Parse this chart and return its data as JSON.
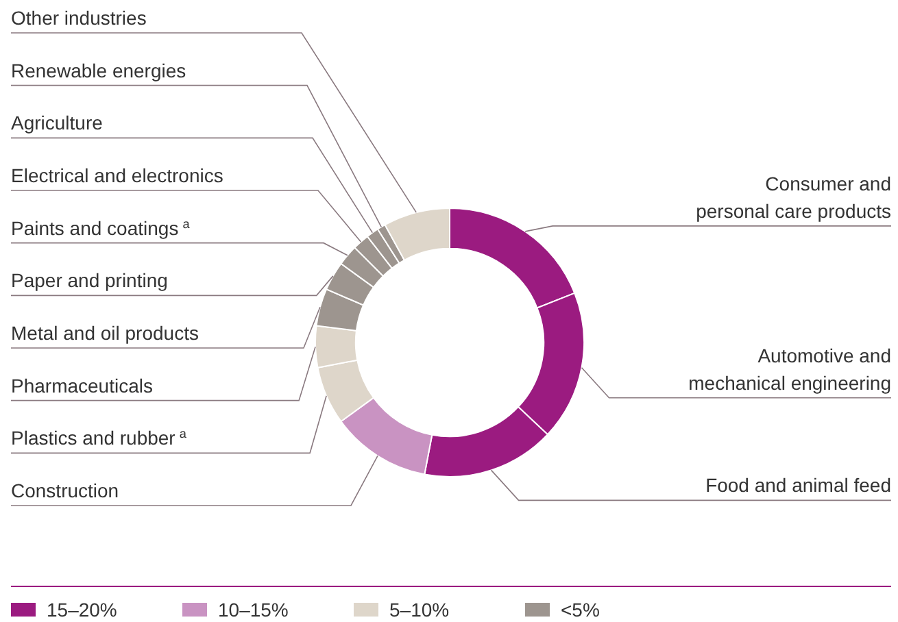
{
  "chart_data": {
    "type": "donut",
    "categories": [
      "Consumer and personal care products",
      "Automotive and mechanical engineering",
      "Food and animal feed",
      "Construction",
      "Plastics and rubber$^{a}$",
      "Pharmaceuticals",
      "Metal and oil products",
      "Paper and printing",
      "Paints and coatings$^{a}$",
      "Electrical and electronics",
      "Agriculture",
      "Renewable energies",
      "Other industries"
    ],
    "values": [
      19,
      18,
      16,
      12,
      7,
      5,
      4.5,
      3.5,
      2.5,
      2,
      1.5,
      1,
      8
    ],
    "colors": [
      "#9b1b80",
      "#9b1b80",
      "#9b1b80",
      "#c993c2",
      "#ded6ca",
      "#ded6ca",
      "#9d958f",
      "#9d958f",
      "#9d958f",
      "#9d958f",
      "#9d958f",
      "#9d958f",
      "#ded6ca"
    ],
    "annotations": [
      "15–20%",
      "10–15%",
      "5–10%",
      "<5%"
    ]
  }
}
